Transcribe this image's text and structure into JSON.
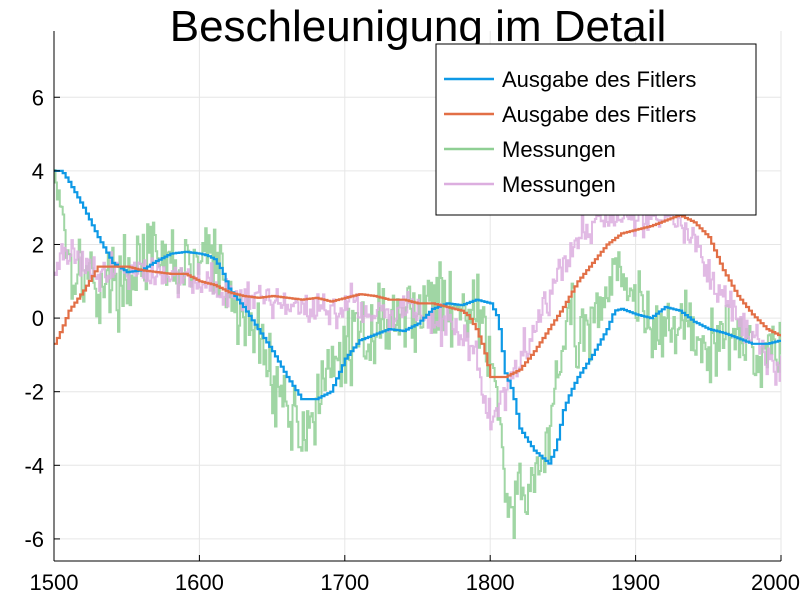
{
  "chart_data": {
    "type": "line",
    "title": "Beschleunigung im Detail",
    "xlabel": "",
    "ylabel": "",
    "xlim": [
      1500,
      2000
    ],
    "ylim": [
      -6.6,
      7.8
    ],
    "xticks": [
      1500,
      1600,
      1700,
      1800,
      1900,
      2000
    ],
    "yticks": [
      -6,
      -4,
      -2,
      0,
      2,
      4,
      6
    ],
    "grid": true,
    "legend_position": "top-right",
    "series": [
      {
        "name": "Ausgabe des Fitlers",
        "color": "#0e99e6",
        "kind": "filter",
        "points": [
          [
            1500,
            4.0
          ],
          [
            1505,
            4.0
          ],
          [
            1510,
            3.7
          ],
          [
            1520,
            3.0
          ],
          [
            1530,
            2.2
          ],
          [
            1540,
            1.5
          ],
          [
            1550,
            1.25
          ],
          [
            1560,
            1.3
          ],
          [
            1570,
            1.55
          ],
          [
            1580,
            1.75
          ],
          [
            1590,
            1.8
          ],
          [
            1600,
            1.75
          ],
          [
            1605,
            1.7
          ],
          [
            1610,
            1.6
          ],
          [
            1615,
            1.3
          ],
          [
            1620,
            0.8
          ],
          [
            1630,
            0.3
          ],
          [
            1640,
            -0.3
          ],
          [
            1650,
            -0.9
          ],
          [
            1660,
            -1.6
          ],
          [
            1670,
            -2.2
          ],
          [
            1680,
            -2.2
          ],
          [
            1690,
            -2.0
          ],
          [
            1700,
            -1.1
          ],
          [
            1710,
            -0.6
          ],
          [
            1720,
            -0.45
          ],
          [
            1730,
            -0.3
          ],
          [
            1740,
            -0.35
          ],
          [
            1750,
            -0.15
          ],
          [
            1760,
            0.25
          ],
          [
            1770,
            0.4
          ],
          [
            1780,
            0.35
          ],
          [
            1790,
            0.5
          ],
          [
            1800,
            0.4
          ],
          [
            1805,
            0.0
          ],
          [
            1810,
            -1.5
          ],
          [
            1815,
            -2.0
          ],
          [
            1820,
            -3.0
          ],
          [
            1830,
            -3.6
          ],
          [
            1840,
            -3.95
          ],
          [
            1845,
            -3.5
          ],
          [
            1850,
            -2.5
          ],
          [
            1855,
            -2.0
          ],
          [
            1860,
            -1.6
          ],
          [
            1870,
            -1.0
          ],
          [
            1880,
            -0.3
          ],
          [
            1885,
            0.2
          ],
          [
            1890,
            0.25
          ],
          [
            1900,
            0.1
          ],
          [
            1910,
            0.0
          ],
          [
            1920,
            0.3
          ],
          [
            1930,
            0.2
          ],
          [
            1940,
            -0.1
          ],
          [
            1950,
            -0.3
          ],
          [
            1960,
            -0.4
          ],
          [
            1970,
            -0.55
          ],
          [
            1980,
            -0.7
          ],
          [
            1990,
            -0.7
          ],
          [
            2000,
            -0.6
          ]
        ]
      },
      {
        "name": "Ausgabe des Fitlers",
        "color": "#e26f46",
        "kind": "filter",
        "points": [
          [
            1500,
            -0.7
          ],
          [
            1505,
            -0.3
          ],
          [
            1510,
            0.2
          ],
          [
            1520,
            0.75
          ],
          [
            1530,
            1.4
          ],
          [
            1540,
            1.4
          ],
          [
            1550,
            1.4
          ],
          [
            1560,
            1.3
          ],
          [
            1570,
            1.25
          ],
          [
            1580,
            1.2
          ],
          [
            1590,
            1.2
          ],
          [
            1600,
            1.0
          ],
          [
            1610,
            0.9
          ],
          [
            1620,
            0.7
          ],
          [
            1630,
            0.6
          ],
          [
            1640,
            0.55
          ],
          [
            1650,
            0.6
          ],
          [
            1660,
            0.55
          ],
          [
            1670,
            0.5
          ],
          [
            1680,
            0.55
          ],
          [
            1690,
            0.45
          ],
          [
            1700,
            0.55
          ],
          [
            1710,
            0.65
          ],
          [
            1720,
            0.6
          ],
          [
            1730,
            0.5
          ],
          [
            1740,
            0.5
          ],
          [
            1750,
            0.4
          ],
          [
            1760,
            0.4
          ],
          [
            1770,
            0.3
          ],
          [
            1780,
            0.2
          ],
          [
            1785,
            0.05
          ],
          [
            1790,
            -0.3
          ],
          [
            1795,
            -0.8
          ],
          [
            1800,
            -1.6
          ],
          [
            1810,
            -1.6
          ],
          [
            1820,
            -1.4
          ],
          [
            1830,
            -0.9
          ],
          [
            1840,
            -0.3
          ],
          [
            1850,
            0.3
          ],
          [
            1860,
            1.0
          ],
          [
            1870,
            1.5
          ],
          [
            1880,
            2.0
          ],
          [
            1890,
            2.3
          ],
          [
            1900,
            2.4
          ],
          [
            1910,
            2.5
          ],
          [
            1920,
            2.65
          ],
          [
            1930,
            2.8
          ],
          [
            1940,
            2.6
          ],
          [
            1950,
            2.2
          ],
          [
            1960,
            1.3
          ],
          [
            1970,
            0.6
          ],
          [
            1980,
            0.1
          ],
          [
            1990,
            -0.3
          ],
          [
            2000,
            -0.5
          ]
        ]
      },
      {
        "name": "Messungen",
        "color": "#8fcf94",
        "kind": "measurement",
        "seed": 17,
        "noise": 1.5,
        "points": [
          [
            1500,
            4.0
          ],
          [
            1505,
            3.2
          ],
          [
            1510,
            1.5
          ],
          [
            1520,
            1.3
          ],
          [
            1530,
            0.8
          ],
          [
            1540,
            1.0
          ],
          [
            1550,
            1.0
          ],
          [
            1560,
            1.8
          ],
          [
            1570,
            1.5
          ],
          [
            1580,
            1.5
          ],
          [
            1590,
            1.3
          ],
          [
            1600,
            1.5
          ],
          [
            1605,
            2.0
          ],
          [
            1610,
            1.5
          ],
          [
            1615,
            1.0
          ],
          [
            1620,
            0.5
          ],
          [
            1630,
            0.0
          ],
          [
            1640,
            -0.5
          ],
          [
            1650,
            -1.5
          ],
          [
            1660,
            -2.5
          ],
          [
            1670,
            -3.0
          ],
          [
            1680,
            -2.5
          ],
          [
            1690,
            -1.5
          ],
          [
            1700,
            -0.8
          ],
          [
            1710,
            -0.5
          ],
          [
            1720,
            -0.2
          ],
          [
            1730,
            0.0
          ],
          [
            1740,
            0.0
          ],
          [
            1750,
            0.3
          ],
          [
            1760,
            0.5
          ],
          [
            1770,
            0.3
          ],
          [
            1780,
            0.5
          ],
          [
            1790,
            0.2
          ],
          [
            1800,
            -1.0
          ],
          [
            1805,
            -2.5
          ],
          [
            1810,
            -4.5
          ],
          [
            1815,
            -5.5
          ],
          [
            1820,
            -5.0
          ],
          [
            1830,
            -4.5
          ],
          [
            1840,
            -3.0
          ],
          [
            1850,
            -1.0
          ],
          [
            1855,
            0.5
          ],
          [
            1860,
            -1.0
          ],
          [
            1870,
            0.0
          ],
          [
            1880,
            1.0
          ],
          [
            1890,
            1.5
          ],
          [
            1900,
            0.5
          ],
          [
            1910,
            -0.5
          ],
          [
            1920,
            -0.3
          ],
          [
            1930,
            0.0
          ],
          [
            1940,
            -0.5
          ],
          [
            1950,
            -1.0
          ],
          [
            1960,
            -0.5
          ],
          [
            1970,
            -0.5
          ],
          [
            1980,
            -0.8
          ],
          [
            1990,
            -0.8
          ],
          [
            2000,
            -0.8
          ]
        ]
      },
      {
        "name": "Messungen",
        "color": "#dcaedf",
        "kind": "measurement",
        "seed": 91,
        "noise": 0.7,
        "points": [
          [
            1500,
            1.5
          ],
          [
            1510,
            1.8
          ],
          [
            1520,
            1.6
          ],
          [
            1530,
            1.2
          ],
          [
            1540,
            1.4
          ],
          [
            1550,
            1.3
          ],
          [
            1560,
            1.3
          ],
          [
            1570,
            1.2
          ],
          [
            1580,
            1.2
          ],
          [
            1590,
            1.1
          ],
          [
            1600,
            1.0
          ],
          [
            1610,
            0.8
          ],
          [
            1620,
            0.6
          ],
          [
            1630,
            0.4
          ],
          [
            1640,
            0.5
          ],
          [
            1650,
            0.5
          ],
          [
            1660,
            0.3
          ],
          [
            1670,
            0.4
          ],
          [
            1680,
            0.3
          ],
          [
            1690,
            0.2
          ],
          [
            1700,
            0.3
          ],
          [
            1710,
            0.4
          ],
          [
            1720,
            0.1
          ],
          [
            1730,
            0.0
          ],
          [
            1740,
            0.3
          ],
          [
            1750,
            0.2
          ],
          [
            1760,
            0.0
          ],
          [
            1770,
            -0.2
          ],
          [
            1780,
            -0.5
          ],
          [
            1790,
            -1.0
          ],
          [
            1795,
            -2.0
          ],
          [
            1800,
            -2.8
          ],
          [
            1805,
            -2.5
          ],
          [
            1810,
            -2.0
          ],
          [
            1815,
            -1.5
          ],
          [
            1820,
            -1.0
          ],
          [
            1830,
            -0.3
          ],
          [
            1840,
            0.5
          ],
          [
            1850,
            1.5
          ],
          [
            1860,
            2.2
          ],
          [
            1870,
            2.6
          ],
          [
            1880,
            2.6
          ],
          [
            1890,
            2.8
          ],
          [
            1900,
            2.7
          ],
          [
            1910,
            2.8
          ],
          [
            1920,
            2.7
          ],
          [
            1930,
            2.6
          ],
          [
            1940,
            2.0
          ],
          [
            1950,
            1.2
          ],
          [
            1960,
            0.5
          ],
          [
            1970,
            0.0
          ],
          [
            1980,
            -0.5
          ],
          [
            1990,
            -1.0
          ],
          [
            2000,
            -1.5
          ]
        ]
      }
    ]
  }
}
